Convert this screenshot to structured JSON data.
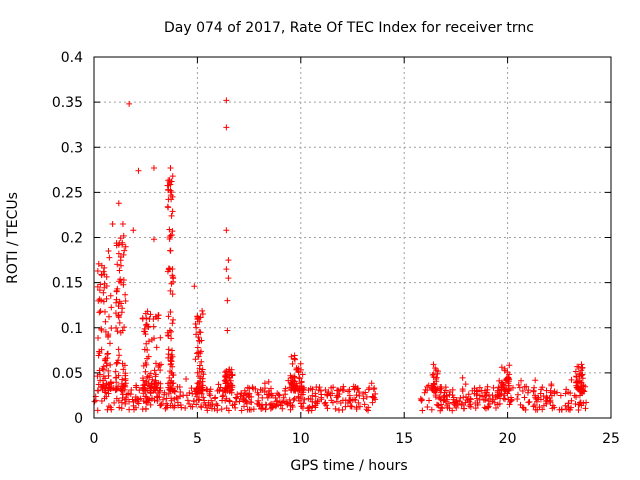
{
  "chart_data": {
    "type": "scatter",
    "title": "Day 074 of 2017, Rate Of TEC Index for receiver trnc",
    "xlabel": "GPS time / hours",
    "ylabel": "ROTI / TECUs",
    "xlim": [
      0,
      25
    ],
    "ylim": [
      0,
      0.4
    ],
    "xticks": [
      "0",
      "5",
      "10",
      "15",
      "20",
      "25"
    ],
    "yticks": [
      "0",
      "0.05",
      "0.1",
      "0.15",
      "0.2",
      "0.25",
      "0.3",
      "0.35",
      "0.4"
    ],
    "grid": true,
    "marker": "+",
    "color": "#ff0000",
    "segments": [
      {
        "start": 0.0,
        "end": 13.6,
        "base_min": 0.008,
        "base_max": 0.035
      },
      {
        "start": 15.8,
        "end": 23.8,
        "base_min": 0.008,
        "base_max": 0.035
      }
    ],
    "bursts": [
      {
        "center": 0.5,
        "width": 0.7,
        "max": 0.18
      },
      {
        "center": 1.3,
        "width": 0.5,
        "max": 0.21
      },
      {
        "center": 2.8,
        "width": 0.9,
        "max": 0.12
      },
      {
        "center": 3.7,
        "width": 0.3,
        "max": 0.27
      },
      {
        "center": 5.1,
        "width": 0.4,
        "max": 0.12
      },
      {
        "center": 6.5,
        "width": 0.4,
        "max": 0.06
      },
      {
        "center": 9.8,
        "width": 0.6,
        "max": 0.07
      },
      {
        "center": 16.5,
        "width": 0.3,
        "max": 0.06
      },
      {
        "center": 19.9,
        "width": 0.4,
        "max": 0.06
      },
      {
        "center": 23.5,
        "width": 0.4,
        "max": 0.06
      }
    ],
    "outliers": [
      {
        "x": 1.7,
        "y": 0.348
      },
      {
        "x": 6.4,
        "y": 0.352
      },
      {
        "x": 6.4,
        "y": 0.322
      },
      {
        "x": 2.9,
        "y": 0.277
      },
      {
        "x": 2.15,
        "y": 0.274
      },
      {
        "x": 3.7,
        "y": 0.277
      },
      {
        "x": 3.75,
        "y": 0.262
      },
      {
        "x": 3.7,
        "y": 0.252
      },
      {
        "x": 3.8,
        "y": 0.245
      },
      {
        "x": 1.2,
        "y": 0.238
      },
      {
        "x": 3.8,
        "y": 0.229
      },
      {
        "x": 3.75,
        "y": 0.224
      },
      {
        "x": 6.4,
        "y": 0.208
      },
      {
        "x": 0.9,
        "y": 0.215
      },
      {
        "x": 1.4,
        "y": 0.215
      },
      {
        "x": 1.9,
        "y": 0.208
      },
      {
        "x": 2.9,
        "y": 0.198
      },
      {
        "x": 3.7,
        "y": 0.202
      },
      {
        "x": 0.7,
        "y": 0.185
      },
      {
        "x": 1.2,
        "y": 0.192
      },
      {
        "x": 6.5,
        "y": 0.175
      },
      {
        "x": 6.4,
        "y": 0.165
      },
      {
        "x": 6.5,
        "y": 0.155
      },
      {
        "x": 6.45,
        "y": 0.13
      },
      {
        "x": 6.45,
        "y": 0.097
      },
      {
        "x": 4.85,
        "y": 0.146
      }
    ]
  }
}
